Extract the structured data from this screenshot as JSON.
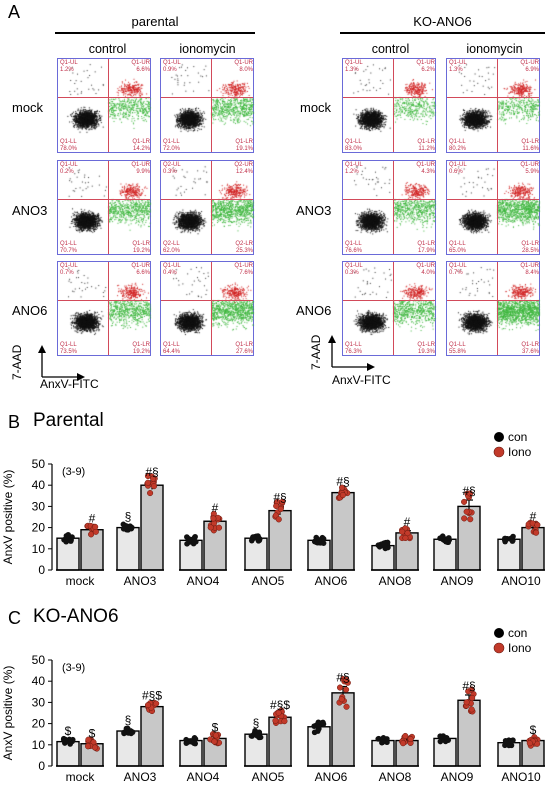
{
  "panels": {
    "A": "A",
    "B": "B",
    "C": "C"
  },
  "flow": {
    "groups": [
      "parental",
      "KO-ANO6"
    ],
    "conditions": [
      "control",
      "ionomycin"
    ],
    "rows": [
      "mock",
      "ANO3",
      "ANO6"
    ],
    "y_axis": "7-AAD",
    "x_axis": "AnxV-FITC",
    "quadrants": [
      [
        [
          [
            "Q1-UL",
            "1.2%"
          ],
          [
            "Q1-UR",
            "6.6%"
          ],
          [
            "Q1-LL",
            "78.0%"
          ],
          [
            "Q1-LR",
            "14.2%"
          ]
        ],
        [
          [
            "Q1-UL",
            "0.9%"
          ],
          [
            "Q1-UR",
            "8.0%"
          ],
          [
            "Q1-LL",
            "72.0%"
          ],
          [
            "Q1-LR",
            "19.1%"
          ]
        ],
        [
          [
            "Q1-UL",
            "1.3%"
          ],
          [
            "Q1-UR",
            "6.2%"
          ],
          [
            "Q1-LL",
            "83.0%"
          ],
          [
            "Q1-LR",
            "11.2%"
          ]
        ],
        [
          [
            "Q1-UL",
            "1.3%"
          ],
          [
            "Q1-UR",
            "6.9%"
          ],
          [
            "Q1-LL",
            "80.2%"
          ],
          [
            "Q1-LR",
            "11.6%"
          ]
        ]
      ],
      [
        [
          [
            "Q1-UL",
            "0.2%"
          ],
          [
            "Q1-UR",
            "9.9%"
          ],
          [
            "Q1-LL",
            "70.7%"
          ],
          [
            "Q1-LR",
            "19.2%"
          ]
        ],
        [
          [
            "Q2-UL",
            "0.3%"
          ],
          [
            "Q2-UR",
            "12.4%"
          ],
          [
            "Q2-LL",
            "62.0%"
          ],
          [
            "Q2-LR",
            "25.3%"
          ]
        ],
        [
          [
            "Q1-UL",
            "1.2%"
          ],
          [
            "Q1-UR",
            "4.3%"
          ],
          [
            "Q1-LL",
            "76.6%"
          ],
          [
            "Q1-LR",
            "17.9%"
          ]
        ],
        [
          [
            "Q1-UL",
            "0.6%"
          ],
          [
            "Q1-UR",
            "5.9%"
          ],
          [
            "Q1-LL",
            "65.0%"
          ],
          [
            "Q1-LR",
            "28.5%"
          ]
        ]
      ],
      [
        [
          [
            "Q1-UL",
            "0.7%"
          ],
          [
            "Q1-UR",
            "6.6%"
          ],
          [
            "Q1-LL",
            "73.5%"
          ],
          [
            "Q1-LR",
            "19.2%"
          ]
        ],
        [
          [
            "Q1-UL",
            "0.4%"
          ],
          [
            "Q1-UR",
            "7.6%"
          ],
          [
            "Q1-LL",
            "64.4%"
          ],
          [
            "Q1-LR",
            "27.6%"
          ]
        ],
        [
          [
            "Q1-UL",
            "0.3%"
          ],
          [
            "Q1-UR",
            "4.0%"
          ],
          [
            "Q1-LL",
            "76.3%"
          ],
          [
            "Q1-LR",
            "19.3%"
          ]
        ],
        [
          [
            "Q1-UL",
            "0.7%"
          ],
          [
            "Q1-UR",
            "8.4%"
          ],
          [
            "Q1-LL",
            "55.8%"
          ],
          [
            "Q1-LR",
            "37.6%"
          ]
        ]
      ]
    ]
  },
  "chart_data": [
    {
      "type": "bar",
      "title": "Parental",
      "ylabel": "AnxV positive (%)",
      "ylim": [
        0,
        50
      ],
      "yticks": [
        0,
        10,
        20,
        30,
        40,
        50
      ],
      "annotation": "(3-9)",
      "legend": [
        "con",
        "Iono"
      ],
      "categories": [
        "mock",
        "ANO3",
        "ANO4",
        "ANO5",
        "ANO6",
        "ANO8",
        "ANO9",
        "ANO10"
      ],
      "series": [
        {
          "name": "con",
          "values": [
            15,
            20,
            14,
            15,
            14,
            11.5,
            14.5,
            14.5
          ]
        },
        {
          "name": "Iono",
          "values": [
            19,
            40,
            23,
            28,
            36.5,
            17.5,
            30,
            20
          ]
        }
      ],
      "sem": {
        "con": [
          1,
          1,
          1,
          0.7,
          0.8,
          0.7,
          1,
          0.7
        ],
        "Iono": [
          1,
          2,
          2,
          2,
          1,
          1,
          3,
          1
        ]
      },
      "marks": {
        "con": [
          "",
          "§",
          "",
          "",
          "",
          "",
          "",
          ""
        ],
        "Iono": [
          "#",
          "#§",
          "#",
          "#§",
          "#§",
          "#",
          "#§",
          "#"
        ]
      }
    },
    {
      "type": "bar",
      "title": "KO-ANO6",
      "ylabel": "AnxV positive (%)",
      "ylim": [
        0,
        50
      ],
      "yticks": [
        0,
        10,
        20,
        30,
        40,
        50
      ],
      "annotation": "(3-9)",
      "legend": [
        "con",
        "Iono"
      ],
      "categories": [
        "mock",
        "ANO3",
        "ANO4",
        "ANO5",
        "ANO6",
        "ANO8",
        "ANO9",
        "ANO10"
      ],
      "series": [
        {
          "name": "con",
          "values": [
            11.5,
            16.5,
            12,
            15,
            18.5,
            12,
            13,
            11
          ]
        },
        {
          "name": "Iono",
          "values": [
            10.5,
            28,
            13,
            23,
            34.5,
            12,
            31,
            12
          ]
        }
      ],
      "sem": {
        "con": [
          0.8,
          1,
          0.8,
          1,
          1.5,
          0.6,
          0.8,
          0.6
        ],
        "Iono": [
          0.7,
          1,
          1,
          1.5,
          3,
          0.6,
          2.5,
          0.7
        ]
      },
      "marks": {
        "con": [
          "$",
          "§",
          "",
          "§",
          "",
          "",
          "",
          ""
        ],
        "Iono": [
          "$",
          "#§$",
          "$",
          "#§$",
          "#§",
          "",
          "#§",
          "$"
        ]
      }
    }
  ]
}
